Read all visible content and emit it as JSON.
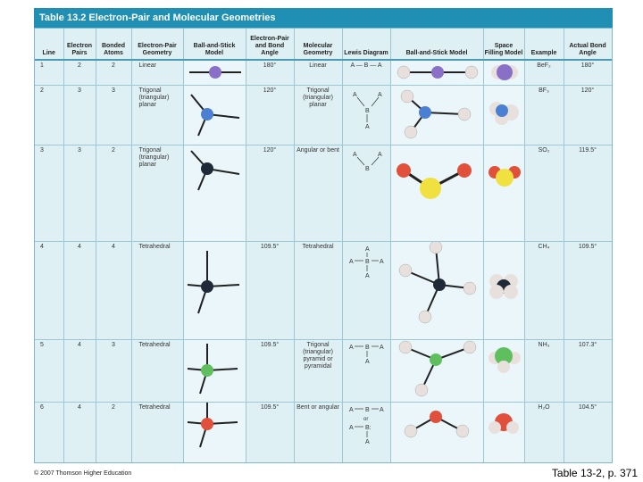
{
  "title": "Table 13.2  Electron-Pair and Molecular Geometries",
  "headers": {
    "line": "Line",
    "electron_pairs": "Electron Pairs",
    "bonded_atoms": "Bonded Atoms",
    "ep_geometry": "Electron-Pair Geometry",
    "ball_stick": "Ball-and-Stick Model",
    "ep_angle": "Electron-Pair and Bond Angle",
    "mol_geometry": "Molecular Geometry",
    "lewis": "Lewis Diagram",
    "ball_stick2": "Ball-and-Stick Model",
    "space_filling": "Space Filling Model",
    "example": "Example",
    "actual_angle": "Actual Bond Angle"
  },
  "rows": [
    {
      "line": "1",
      "pairs": "2",
      "bonded": "2",
      "ep_geom": "Linear",
      "angle": "180°",
      "mol_geom": "Linear",
      "example": "BeF₂",
      "actual": "180°"
    },
    {
      "line": "2",
      "pairs": "3",
      "bonded": "3",
      "ep_geom": "Trigonal (triangular) planar",
      "angle": "120°",
      "mol_geom": "Trigonal (triangular) planar",
      "example": "BF₃",
      "actual": "120°"
    },
    {
      "line": "3",
      "pairs": "3",
      "bonded": "2",
      "ep_geom": "Trigonal (triangular) planar",
      "angle": "120°",
      "mol_geom": "Angular or bent",
      "example": "SO₂",
      "actual": "119.5°"
    },
    {
      "line": "4",
      "pairs": "4",
      "bonded": "4",
      "ep_geom": "Tetrahedral",
      "angle": "109.5°",
      "mol_geom": "Tetrahedral",
      "example": "CH₄",
      "actual": "109.5°"
    },
    {
      "line": "5",
      "pairs": "4",
      "bonded": "3",
      "ep_geom": "Tetrahedral",
      "angle": "109.5°",
      "mol_geom": "Trigonal (triangular) pyramid or pyramidal",
      "example": "NH₃",
      "actual": "107.3°"
    },
    {
      "line": "6",
      "pairs": "4",
      "bonded": "2",
      "ep_geom": "Tetrahedral",
      "angle": "109.5°",
      "mol_geom": "Bent or angular",
      "example": "H₂O",
      "actual": "104.5°"
    }
  ],
  "lewis": {
    "r1": "A — B — A",
    "a": "A",
    "b": "B",
    "dash": "—",
    "bar": "|",
    "or": "or",
    "bcolon": "B:"
  },
  "copyright": "© 2007 Thomson Higher Education",
  "caption": "Table 13-2, p. 371",
  "colors": {
    "header_bar": "#1f8fb3",
    "cell_bg": "#dff0f4",
    "center_purple": "#8a6fc7",
    "center_blue": "#4a7fd4",
    "center_black": "#1e2a38",
    "center_green": "#5fbf5f",
    "center_red": "#e0503a",
    "outer_white": "#e8e0dc",
    "sulfur": "#f0e040",
    "oxygen": "#e0503a"
  }
}
